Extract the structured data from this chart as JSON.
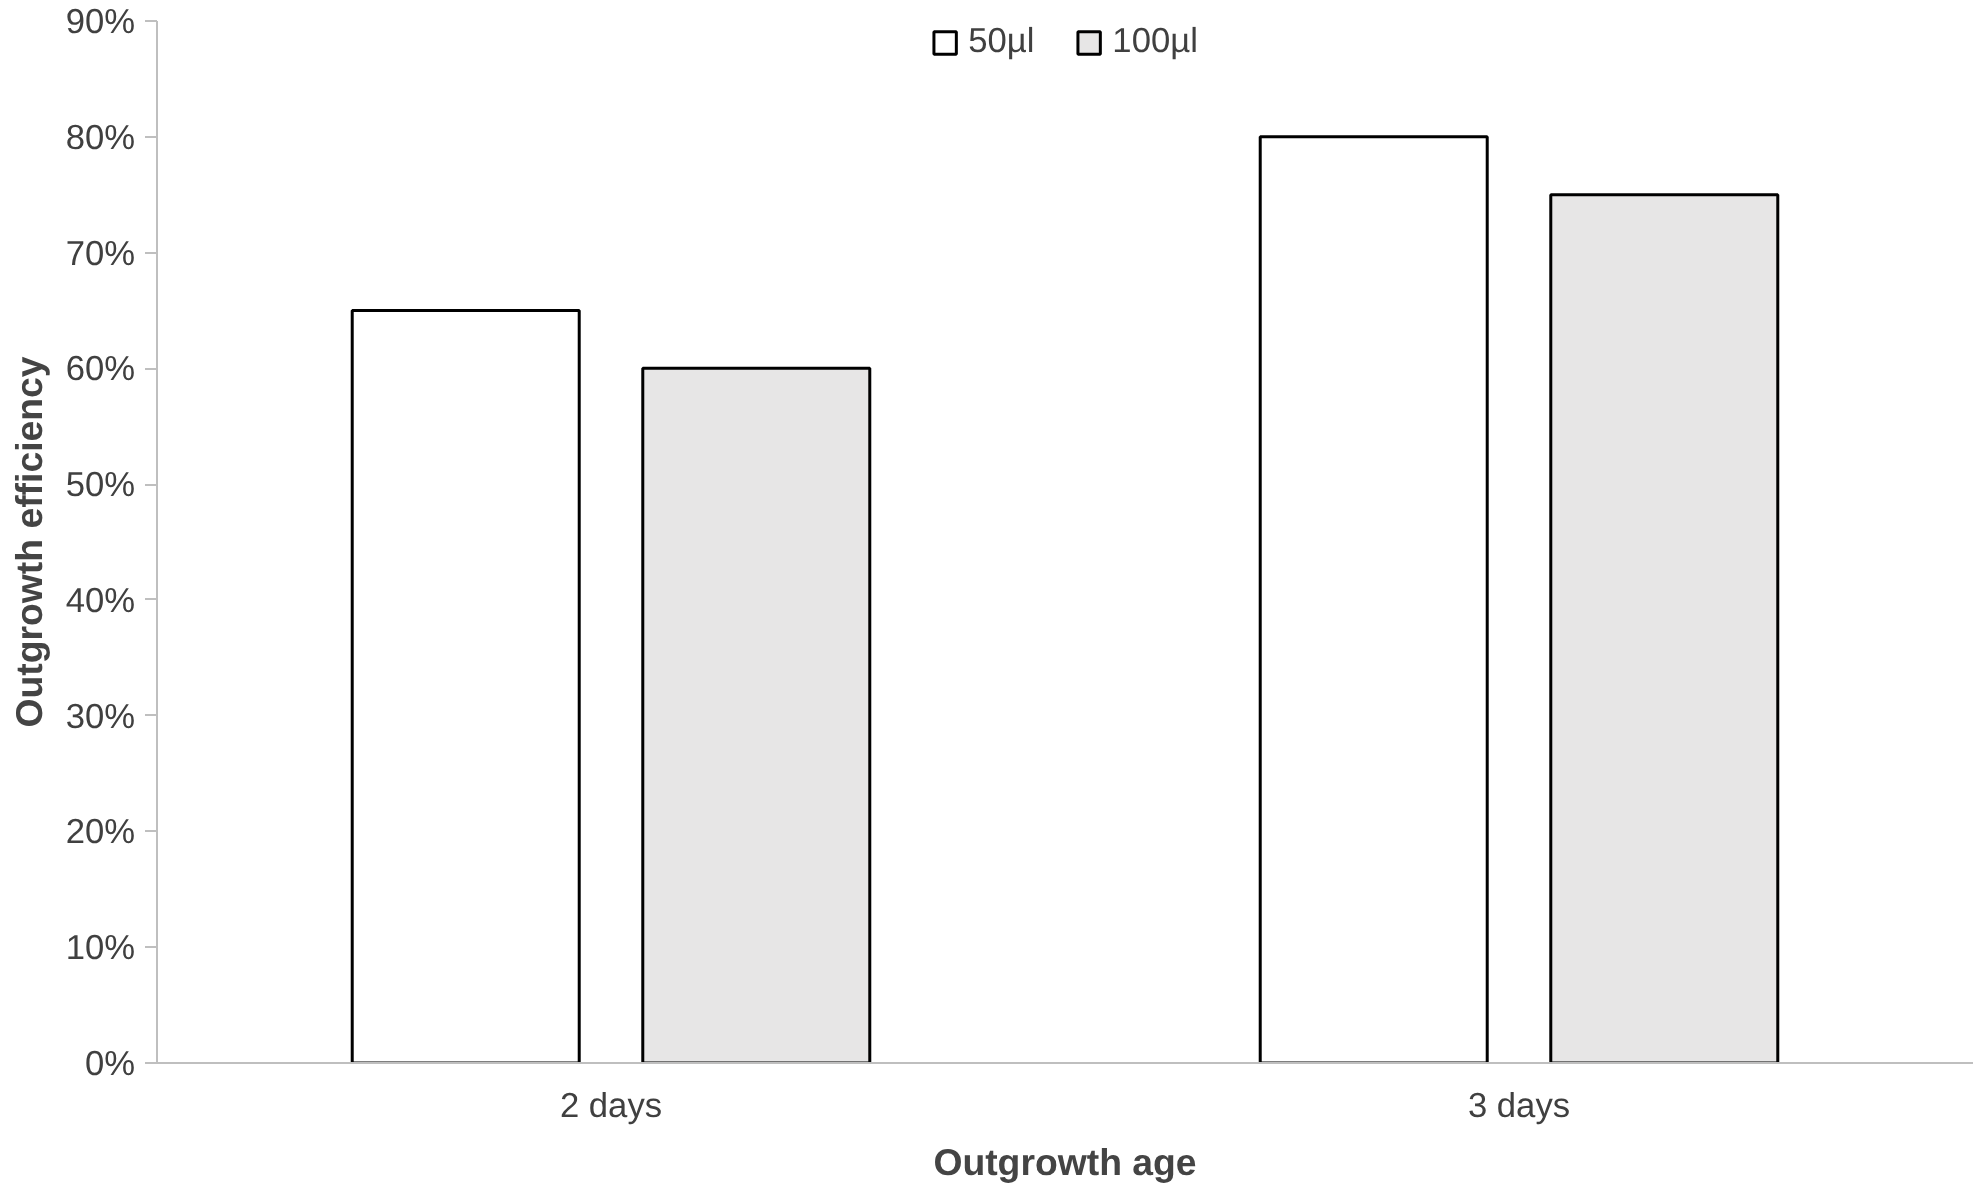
{
  "chart_data": {
    "type": "bar",
    "xlabel": "Outgrowth age",
    "ylabel": "Outgrowth efficiency",
    "categories": [
      "2 days",
      "3 days"
    ],
    "series": [
      {
        "name": "50µl",
        "color": "#ffffff",
        "values": [
          65,
          80
        ]
      },
      {
        "name": "100µl",
        "color": "#e7e6e6",
        "values": [
          60,
          75
        ]
      }
    ],
    "ylim": [
      0,
      90
    ],
    "yticks": [
      {
        "value": 0,
        "label": "0%"
      },
      {
        "value": 10,
        "label": "10%"
      },
      {
        "value": 20,
        "label": "20%"
      },
      {
        "value": 30,
        "label": "30%"
      },
      {
        "value": 40,
        "label": "40%"
      },
      {
        "value": 50,
        "label": "50%"
      },
      {
        "value": 60,
        "label": "60%"
      },
      {
        "value": 70,
        "label": "70%"
      },
      {
        "value": 80,
        "label": "80%"
      },
      {
        "value": 90,
        "label": "90%"
      }
    ],
    "grid": false,
    "legend": "top"
  }
}
